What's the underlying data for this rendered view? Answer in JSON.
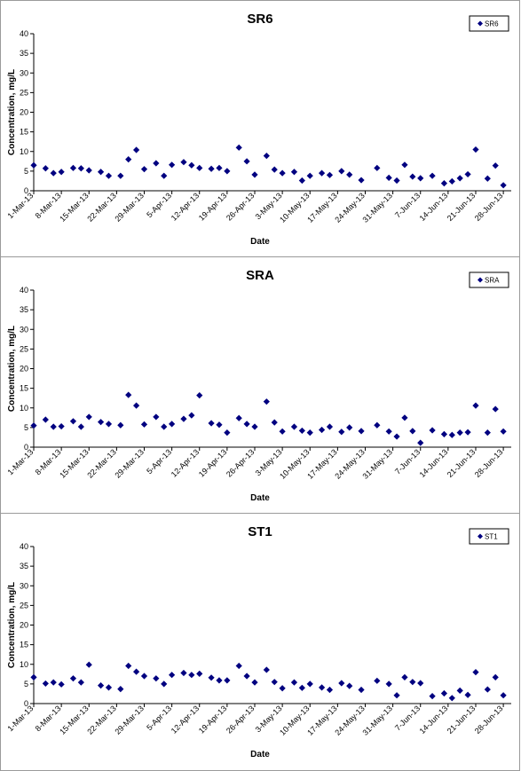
{
  "charts": [
    {
      "type": "scatter",
      "title": "SR6",
      "xlabel": "Date",
      "ylabel": "Concentration, mg/L",
      "ylim": [
        0,
        40
      ],
      "yticks": [
        0,
        5,
        10,
        15,
        20,
        25,
        30,
        35,
        40
      ],
      "grid": false,
      "legend_position": "top-right",
      "x_tick_labels": [
        "1-Mar-13",
        "8-Mar-13",
        "15-Mar-13",
        "22-Mar-13",
        "29-Mar-13",
        "5-Apr-13",
        "12-Apr-13",
        "19-Apr-13",
        "26-Apr-13",
        "3-May-13",
        "10-May-13",
        "17-May-13",
        "24-May-13",
        "31-May-13",
        "7-Jun-13",
        "14-Jun-13",
        "21-Jun-13",
        "28-Jun-13"
      ],
      "x_ticks": [
        "2013-03-01",
        "2013-03-08",
        "2013-03-15",
        "2013-03-22",
        "2013-03-29",
        "2013-04-05",
        "2013-04-12",
        "2013-04-19",
        "2013-04-26",
        "2013-05-03",
        "2013-05-10",
        "2013-05-17",
        "2013-05-24",
        "2013-05-31",
        "2013-06-07",
        "2013-06-14",
        "2013-06-21",
        "2013-06-28"
      ],
      "xlim": [
        "2013-03-01",
        "2013-06-30"
      ],
      "series": [
        {
          "name": "SR6",
          "color": "#000080",
          "x": [
            "2013-03-01",
            "2013-03-04",
            "2013-03-06",
            "2013-03-08",
            "2013-03-11",
            "2013-03-13",
            "2013-03-15",
            "2013-03-18",
            "2013-03-20",
            "2013-03-23",
            "2013-03-25",
            "2013-03-27",
            "2013-03-29",
            "2013-04-01",
            "2013-04-03",
            "2013-04-05",
            "2013-04-08",
            "2013-04-10",
            "2013-04-12",
            "2013-04-15",
            "2013-04-17",
            "2013-04-19",
            "2013-04-22",
            "2013-04-24",
            "2013-04-26",
            "2013-04-29",
            "2013-05-01",
            "2013-05-03",
            "2013-05-06",
            "2013-05-08",
            "2013-05-10",
            "2013-05-13",
            "2013-05-15",
            "2013-05-18",
            "2013-05-20",
            "2013-05-23",
            "2013-05-27",
            "2013-05-30",
            "2013-06-01",
            "2013-06-03",
            "2013-06-05",
            "2013-06-07",
            "2013-06-10",
            "2013-06-13",
            "2013-06-15",
            "2013-06-17",
            "2013-06-19",
            "2013-06-21",
            "2013-06-24",
            "2013-06-26",
            "2013-06-28"
          ],
          "y": [
            6.5,
            5.7,
            4.5,
            4.8,
            5.8,
            5.7,
            5.2,
            4.8,
            3.8,
            3.8,
            8.0,
            10.4,
            5.5,
            7.0,
            3.8,
            6.6,
            7.3,
            6.5,
            5.8,
            5.6,
            5.8,
            5.0,
            11.0,
            7.5,
            4.1,
            8.9,
            5.4,
            4.5,
            4.8,
            2.6,
            3.8,
            4.5,
            4.0,
            5.0,
            4.1,
            2.7,
            5.8,
            3.3,
            2.6,
            6.6,
            3.6,
            3.2,
            3.8,
            1.9,
            2.4,
            3.2,
            4.2,
            10.5,
            3.1,
            6.4,
            1.4
          ]
        }
      ]
    },
    {
      "type": "scatter",
      "title": "SRA",
      "xlabel": "Date",
      "ylabel": "Concentration, mg/L",
      "ylim": [
        0,
        40
      ],
      "yticks": [
        0,
        5,
        10,
        15,
        20,
        25,
        30,
        35,
        40
      ],
      "grid": false,
      "legend_position": "top-right",
      "x_tick_labels": [
        "1-Mar-13",
        "8-Mar-13",
        "15-Mar-13",
        "22-Mar-13",
        "29-Mar-13",
        "5-Apr-13",
        "12-Apr-13",
        "19-Apr-13",
        "26-Apr-13",
        "3-May-13",
        "10-May-13",
        "17-May-13",
        "24-May-13",
        "31-May-13",
        "7-Jun-13",
        "14-Jun-13",
        "21-Jun-13",
        "28-Jun-13"
      ],
      "x_ticks": [
        "2013-03-01",
        "2013-03-08",
        "2013-03-15",
        "2013-03-22",
        "2013-03-29",
        "2013-04-05",
        "2013-04-12",
        "2013-04-19",
        "2013-04-26",
        "2013-05-03",
        "2013-05-10",
        "2013-05-17",
        "2013-05-24",
        "2013-05-31",
        "2013-06-07",
        "2013-06-14",
        "2013-06-21",
        "2013-06-28"
      ],
      "xlim": [
        "2013-03-01",
        "2013-06-30"
      ],
      "series": [
        {
          "name": "SRA",
          "color": "#000080",
          "x": [
            "2013-03-01",
            "2013-03-04",
            "2013-03-06",
            "2013-03-08",
            "2013-03-11",
            "2013-03-13",
            "2013-03-15",
            "2013-03-18",
            "2013-03-20",
            "2013-03-23",
            "2013-03-25",
            "2013-03-27",
            "2013-03-29",
            "2013-04-01",
            "2013-04-03",
            "2013-04-05",
            "2013-04-08",
            "2013-04-10",
            "2013-04-12",
            "2013-04-15",
            "2013-04-17",
            "2013-04-19",
            "2013-04-22",
            "2013-04-24",
            "2013-04-26",
            "2013-04-29",
            "2013-05-01",
            "2013-05-03",
            "2013-05-06",
            "2013-05-08",
            "2013-05-10",
            "2013-05-13",
            "2013-05-15",
            "2013-05-18",
            "2013-05-20",
            "2013-05-23",
            "2013-05-27",
            "2013-05-30",
            "2013-06-01",
            "2013-06-03",
            "2013-06-05",
            "2013-06-07",
            "2013-06-10",
            "2013-06-13",
            "2013-06-15",
            "2013-06-17",
            "2013-06-19",
            "2013-06-21",
            "2013-06-24",
            "2013-06-26",
            "2013-06-28"
          ],
          "y": [
            5.5,
            7.0,
            5.2,
            5.3,
            6.6,
            5.2,
            7.7,
            6.4,
            5.9,
            5.6,
            13.3,
            10.6,
            5.8,
            7.7,
            5.2,
            5.9,
            7.2,
            8.1,
            13.2,
            6.1,
            5.7,
            3.7,
            7.4,
            5.9,
            5.2,
            11.6,
            6.3,
            4.0,
            5.2,
            4.2,
            3.7,
            4.4,
            5.2,
            3.9,
            5.0,
            4.1,
            5.6,
            4.0,
            2.7,
            7.5,
            4.1,
            1.1,
            4.3,
            3.3,
            3.1,
            3.7,
            3.8,
            10.6,
            3.7,
            9.7,
            4.0
          ]
        }
      ]
    },
    {
      "type": "scatter",
      "title": "ST1",
      "xlabel": "Date",
      "ylabel": "Concentration, mg/L",
      "ylim": [
        0,
        40
      ],
      "yticks": [
        0,
        5,
        10,
        15,
        20,
        25,
        30,
        35,
        40
      ],
      "grid": false,
      "legend_position": "top-right",
      "x_tick_labels": [
        "1-Mar-13",
        "8-Mar-13",
        "15-Mar-13",
        "22-Mar-13",
        "29-Mar-13",
        "5-Apr-13",
        "12-Apr-13",
        "19-Apr-13",
        "26-Apr-13",
        "3-May-13",
        "10-May-13",
        "17-May-13",
        "24-May-13",
        "31-May-13",
        "7-Jun-13",
        "14-Jun-13",
        "21-Jun-13",
        "28-Jun-13"
      ],
      "x_ticks": [
        "2013-03-01",
        "2013-03-08",
        "2013-03-15",
        "2013-03-22",
        "2013-03-29",
        "2013-04-05",
        "2013-04-12",
        "2013-04-19",
        "2013-04-26",
        "2013-05-03",
        "2013-05-10",
        "2013-05-17",
        "2013-05-24",
        "2013-05-31",
        "2013-06-07",
        "2013-06-14",
        "2013-06-21",
        "2013-06-28"
      ],
      "xlim": [
        "2013-03-01",
        "2013-06-30"
      ],
      "series": [
        {
          "name": "ST1",
          "color": "#000080",
          "x": [
            "2013-03-01",
            "2013-03-04",
            "2013-03-06",
            "2013-03-08",
            "2013-03-11",
            "2013-03-13",
            "2013-03-15",
            "2013-03-18",
            "2013-03-20",
            "2013-03-23",
            "2013-03-25",
            "2013-03-27",
            "2013-03-29",
            "2013-04-01",
            "2013-04-03",
            "2013-04-05",
            "2013-04-08",
            "2013-04-10",
            "2013-04-12",
            "2013-04-15",
            "2013-04-17",
            "2013-04-19",
            "2013-04-22",
            "2013-04-24",
            "2013-04-26",
            "2013-04-29",
            "2013-05-01",
            "2013-05-03",
            "2013-05-06",
            "2013-05-08",
            "2013-05-10",
            "2013-05-13",
            "2013-05-15",
            "2013-05-18",
            "2013-05-20",
            "2013-05-23",
            "2013-05-27",
            "2013-05-30",
            "2013-06-01",
            "2013-06-03",
            "2013-06-05",
            "2013-06-07",
            "2013-06-10",
            "2013-06-13",
            "2013-06-15",
            "2013-06-17",
            "2013-06-19",
            "2013-06-21",
            "2013-06-24",
            "2013-06-26",
            "2013-06-28"
          ],
          "y": [
            6.7,
            5.1,
            5.4,
            4.9,
            6.4,
            5.4,
            9.9,
            4.6,
            4.1,
            3.7,
            9.6,
            8.1,
            7.0,
            6.4,
            5.0,
            7.3,
            7.8,
            7.3,
            7.6,
            6.6,
            5.9,
            5.9,
            9.6,
            7.0,
            5.4,
            8.6,
            5.5,
            3.9,
            5.4,
            4.0,
            5.0,
            4.1,
            3.5,
            5.2,
            4.5,
            3.5,
            5.8,
            5.0,
            2.1,
            6.7,
            5.5,
            5.2,
            1.9,
            2.6,
            1.4,
            3.3,
            2.2,
            8.0,
            3.6,
            6.7,
            2.1
          ]
        }
      ]
    }
  ]
}
